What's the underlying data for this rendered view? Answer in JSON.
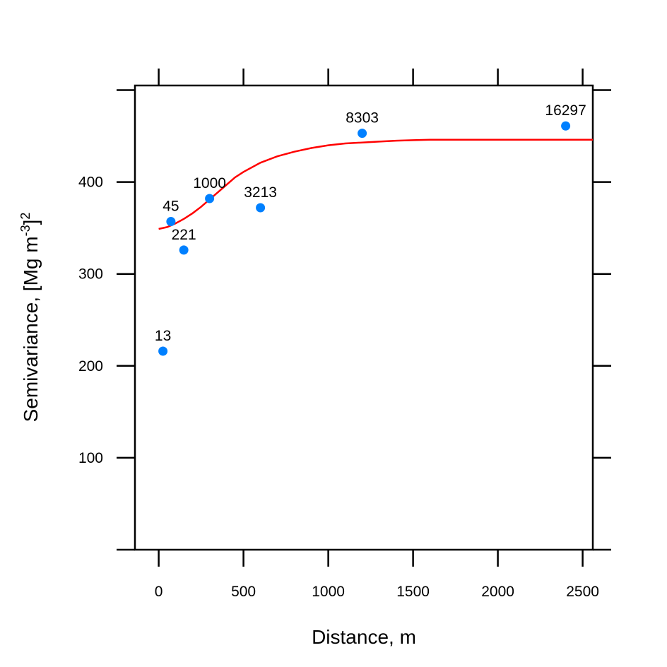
{
  "chart_data": {
    "type": "scatter",
    "title": "",
    "xlabel": "Distance, m",
    "ylabel_main": "Semivariance, [Mg m",
    "ylabel_sup1": "-3",
    "ylabel_mid": "]",
    "ylabel_sup2": "2",
    "xlim": [
      -140,
      2560
    ],
    "ylim": [
      0,
      505
    ],
    "xticks": [
      0,
      500,
      1000,
      1500,
      2000,
      2500
    ],
    "yticks": [
      100,
      200,
      300,
      400
    ],
    "grid": false,
    "point_color": "#0080ff",
    "line_color": "#ff0000",
    "points": [
      {
        "x": 25,
        "y": 216,
        "label": "13"
      },
      {
        "x": 72,
        "y": 357,
        "label": "45"
      },
      {
        "x": 148,
        "y": 326,
        "label": "221"
      },
      {
        "x": 300,
        "y": 382,
        "label": "1000"
      },
      {
        "x": 600,
        "y": 372,
        "label": "3213"
      },
      {
        "x": 1200,
        "y": 453,
        "label": "8303"
      },
      {
        "x": 2400,
        "y": 461,
        "label": "16297"
      }
    ],
    "fitted_curve": {
      "x": [
        0,
        50,
        100,
        150,
        200,
        250,
        300,
        350,
        400,
        450,
        500,
        600,
        700,
        800,
        900,
        1000,
        1100,
        1200,
        1300,
        1400,
        1500,
        1600,
        1800,
        2000,
        2200,
        2400,
        2560
      ],
      "y": [
        349,
        351,
        355,
        360,
        366,
        373,
        381,
        389,
        397,
        405,
        411,
        421,
        428,
        433,
        437,
        440,
        442,
        443,
        444,
        445,
        445.5,
        446,
        446,
        446,
        446,
        446,
        446
      ]
    }
  }
}
